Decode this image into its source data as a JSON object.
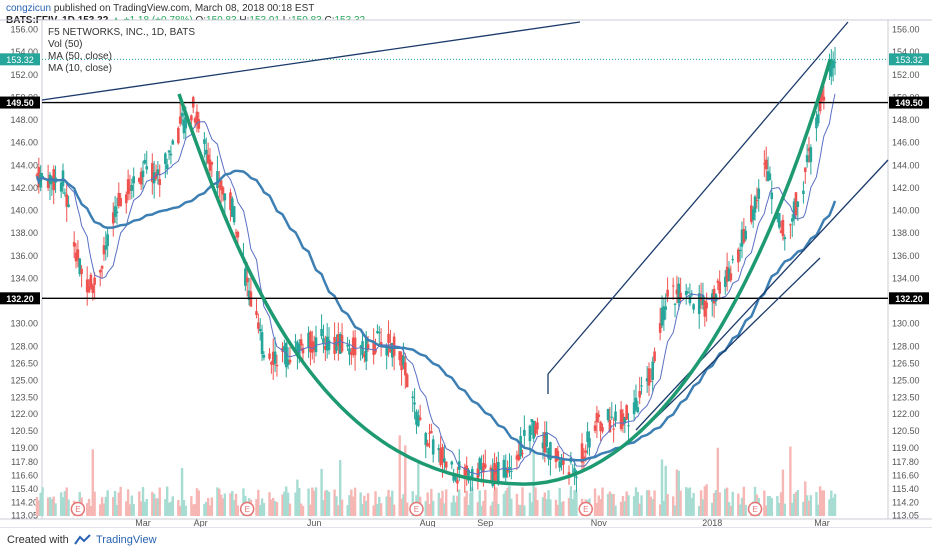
{
  "header": {
    "author": "congzicun",
    "published": "published on TradingView.com, March 08, 2018 00:18 EST",
    "symbol": "BATS:FFIV, 1D",
    "last": "153.32",
    "change_arrow": "▲",
    "change": "+1.18 (+0.78%)",
    "o_label": "O:",
    "o_value": "150.83",
    "h_label": "H:",
    "h_value": "153.91",
    "l_label": "L:",
    "l_value": "150.83",
    "c_label": "C:",
    "c_value": "153.32"
  },
  "legend": {
    "title": "F5 NETWORKS, INC., 1D, BATS",
    "vol": "Vol (50)",
    "ma50": "MA (50, close)",
    "ma10": "MA (10, close)"
  },
  "footer": {
    "created": "Created with",
    "brand": "TradingView"
  },
  "colors": {
    "up": "#26a69a",
    "down": "#ef5350",
    "vol_up": "#a6dcd2",
    "vol_down": "#f6b6b4",
    "ma50": "#3d7fb3",
    "ma10": "#5a6fc4",
    "cup": "#1e9a72",
    "trendline": "#1b3a6b",
    "level": "#000000",
    "price_tag": "#26a69a"
  },
  "chart_data": {
    "type": "candlestick",
    "title": "F5 NETWORKS, INC., 1D, BATS",
    "yticks": [
      "156.00",
      "154.00",
      "152.00",
      "150.00",
      "148.00",
      "146.00",
      "144.00",
      "142.00",
      "140.00",
      "138.00",
      "136.00",
      "134.00",
      "132.00",
      "130.00",
      "128.00",
      "126.50",
      "125.00",
      "123.50",
      "122.00",
      "120.50",
      "119.00",
      "117.80",
      "116.60",
      "115.40",
      "114.20",
      "113.05"
    ],
    "ytick_values": [
      156,
      154,
      152,
      150,
      148,
      146,
      144,
      142,
      140,
      138,
      136,
      134,
      132,
      130,
      128,
      126.5,
      125,
      123.5,
      122,
      120.5,
      119,
      117.8,
      116.6,
      115.4,
      114.2,
      113.05
    ],
    "xticks": [
      {
        "label": "Mar",
        "date": "2017-03-01"
      },
      {
        "label": "Apr",
        "date": "2017-04-01"
      },
      {
        "label": "Jun",
        "date": "2017-06-01"
      },
      {
        "label": "Aug",
        "date": "2017-08-01"
      },
      {
        "label": "Sep",
        "date": "2017-09-01"
      },
      {
        "label": "Nov",
        "date": "2017-11-01"
      },
      {
        "label": "2018",
        "date": "2018-01-01"
      },
      {
        "label": "Mar",
        "date": "2018-03-01"
      }
    ],
    "earnings_markers": [
      {
        "label": "E",
        "date": "2017-01-25"
      },
      {
        "label": "E",
        "date": "2017-04-26"
      },
      {
        "label": "E",
        "date": "2017-07-26"
      },
      {
        "label": "E",
        "date": "2017-10-25"
      },
      {
        "label": "E",
        "date": "2018-01-24"
      }
    ],
    "horizontal_levels": [
      {
        "label": "149.50",
        "value": 149.5,
        "from": "2017-03-25"
      },
      {
        "label": "132.20",
        "value": 132.2,
        "from": "2017-06-10"
      }
    ],
    "last_price": {
      "label": "153.32",
      "value": 153.32
    },
    "close_anchors": [
      {
        "date": "2017-01-03",
        "close": 143.0
      },
      {
        "date": "2017-01-17",
        "close": 142.5
      },
      {
        "date": "2017-01-27",
        "close": 134.0
      },
      {
        "date": "2017-02-03",
        "close": 133.5
      },
      {
        "date": "2017-02-10",
        "close": 137.0
      },
      {
        "date": "2017-02-17",
        "close": 141.0
      },
      {
        "date": "2017-03-01",
        "close": 143.5
      },
      {
        "date": "2017-03-10",
        "close": 143.0
      },
      {
        "date": "2017-03-20",
        "close": 147.0
      },
      {
        "date": "2017-03-28",
        "close": 149.0
      },
      {
        "date": "2017-04-05",
        "close": 145.0
      },
      {
        "date": "2017-04-12",
        "close": 142.0
      },
      {
        "date": "2017-04-19",
        "close": 140.0
      },
      {
        "date": "2017-04-27",
        "close": 132.5
      },
      {
        "date": "2017-05-05",
        "close": 127.5
      },
      {
        "date": "2017-05-15",
        "close": 127.0
      },
      {
        "date": "2017-05-25",
        "close": 128.0
      },
      {
        "date": "2017-06-06",
        "close": 128.5
      },
      {
        "date": "2017-06-15",
        "close": 128.0
      },
      {
        "date": "2017-06-27",
        "close": 127.5
      },
      {
        "date": "2017-07-07",
        "close": 128.5
      },
      {
        "date": "2017-07-17",
        "close": 127.5
      },
      {
        "date": "2017-07-27",
        "close": 121.0
      },
      {
        "date": "2017-08-07",
        "close": 118.5
      },
      {
        "date": "2017-08-17",
        "close": 116.8
      },
      {
        "date": "2017-08-28",
        "close": 117.2
      },
      {
        "date": "2017-09-07",
        "close": 116.5
      },
      {
        "date": "2017-09-18",
        "close": 118.5
      },
      {
        "date": "2017-09-28",
        "close": 121.0
      },
      {
        "date": "2017-10-09",
        "close": 118.0
      },
      {
        "date": "2017-10-19",
        "close": 116.8
      },
      {
        "date": "2017-10-30",
        "close": 121.0
      },
      {
        "date": "2017-11-09",
        "close": 121.5
      },
      {
        "date": "2017-11-20",
        "close": 122.0
      },
      {
        "date": "2017-11-30",
        "close": 126.0
      },
      {
        "date": "2017-12-08",
        "close": 133.0
      },
      {
        "date": "2017-12-18",
        "close": 132.0
      },
      {
        "date": "2017-12-29",
        "close": 131.5
      },
      {
        "date": "2018-01-09",
        "close": 134.0
      },
      {
        "date": "2018-01-19",
        "close": 138.0
      },
      {
        "date": "2018-01-30",
        "close": 144.0
      },
      {
        "date": "2018-02-09",
        "close": 137.5
      },
      {
        "date": "2018-02-20",
        "close": 143.0
      },
      {
        "date": "2018-03-01",
        "close": 150.0
      },
      {
        "date": "2018-03-08",
        "close": 153.32
      }
    ]
  }
}
